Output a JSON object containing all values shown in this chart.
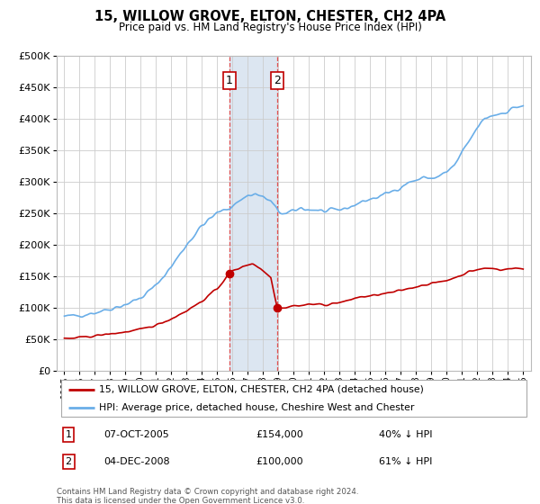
{
  "title": "15, WILLOW GROVE, ELTON, CHESTER, CH2 4PA",
  "subtitle": "Price paid vs. HM Land Registry's House Price Index (HPI)",
  "hpi_label": "HPI: Average price, detached house, Cheshire West and Chester",
  "sale_label": "15, WILLOW GROVE, ELTON, CHESTER, CH2 4PA (detached house)",
  "footer": "Contains HM Land Registry data © Crown copyright and database right 2024.\nThis data is licensed under the Open Government Licence v3.0.",
  "sale1_date": "07-OCT-2005",
  "sale1_price": "£154,000",
  "sale1_pct": "40% ↓ HPI",
  "sale2_date": "04-DEC-2008",
  "sale2_price": "£100,000",
  "sale2_pct": "61% ↓ HPI",
  "ylim": [
    0,
    500000
  ],
  "yticks": [
    0,
    50000,
    100000,
    150000,
    200000,
    250000,
    300000,
    350000,
    400000,
    450000,
    500000
  ],
  "hpi_color": "#6aaee8",
  "sale_color": "#c00000",
  "shade_color": "#dce6f1",
  "vline_color": "#e05050",
  "marker1_x": 2005.8,
  "marker2_x": 2008.92,
  "marker1_y": 154000,
  "marker2_y": 100000,
  "xlim_left": 1994.5,
  "xlim_right": 2025.5
}
